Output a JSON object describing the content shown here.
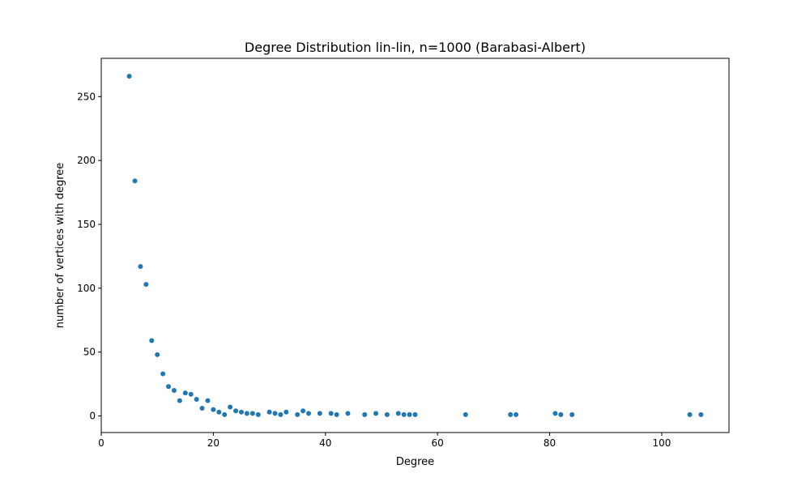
{
  "chart_data": {
    "type": "scatter",
    "title": "Degree Distribution lin-lin, n=1000 (Barabasi-Albert)",
    "xlabel": "Degree",
    "ylabel": "number of vertices with degree",
    "xlim": [
      0,
      112
    ],
    "ylim": [
      -13,
      280
    ],
    "xticks": [
      0,
      20,
      40,
      60,
      80,
      100
    ],
    "yticks": [
      0,
      50,
      100,
      150,
      200,
      250
    ],
    "grid": false,
    "legend": "none",
    "point_color": "#1f77b4",
    "points": [
      {
        "x": 5,
        "y": 266
      },
      {
        "x": 6,
        "y": 184
      },
      {
        "x": 7,
        "y": 117
      },
      {
        "x": 8,
        "y": 103
      },
      {
        "x": 9,
        "y": 59
      },
      {
        "x": 10,
        "y": 48
      },
      {
        "x": 11,
        "y": 33
      },
      {
        "x": 12,
        "y": 23
      },
      {
        "x": 13,
        "y": 20
      },
      {
        "x": 14,
        "y": 12
      },
      {
        "x": 15,
        "y": 18
      },
      {
        "x": 16,
        "y": 17
      },
      {
        "x": 17,
        "y": 13
      },
      {
        "x": 18,
        "y": 6
      },
      {
        "x": 19,
        "y": 12
      },
      {
        "x": 20,
        "y": 5
      },
      {
        "x": 21,
        "y": 3
      },
      {
        "x": 22,
        "y": 1
      },
      {
        "x": 23,
        "y": 7
      },
      {
        "x": 24,
        "y": 4
      },
      {
        "x": 25,
        "y": 3
      },
      {
        "x": 26,
        "y": 2
      },
      {
        "x": 27,
        "y": 2
      },
      {
        "x": 28,
        "y": 1
      },
      {
        "x": 30,
        "y": 3
      },
      {
        "x": 31,
        "y": 2
      },
      {
        "x": 32,
        "y": 1
      },
      {
        "x": 33,
        "y": 3
      },
      {
        "x": 35,
        "y": 1
      },
      {
        "x": 36,
        "y": 4
      },
      {
        "x": 37,
        "y": 2
      },
      {
        "x": 39,
        "y": 2
      },
      {
        "x": 41,
        "y": 2
      },
      {
        "x": 42,
        "y": 1
      },
      {
        "x": 44,
        "y": 2
      },
      {
        "x": 47,
        "y": 1
      },
      {
        "x": 49,
        "y": 2
      },
      {
        "x": 51,
        "y": 1
      },
      {
        "x": 53,
        "y": 2
      },
      {
        "x": 54,
        "y": 1
      },
      {
        "x": 55,
        "y": 1
      },
      {
        "x": 56,
        "y": 1
      },
      {
        "x": 65,
        "y": 1
      },
      {
        "x": 73,
        "y": 1
      },
      {
        "x": 74,
        "y": 1
      },
      {
        "x": 81,
        "y": 2
      },
      {
        "x": 82,
        "y": 1
      },
      {
        "x": 84,
        "y": 1
      },
      {
        "x": 105,
        "y": 1
      },
      {
        "x": 107,
        "y": 1
      }
    ]
  }
}
